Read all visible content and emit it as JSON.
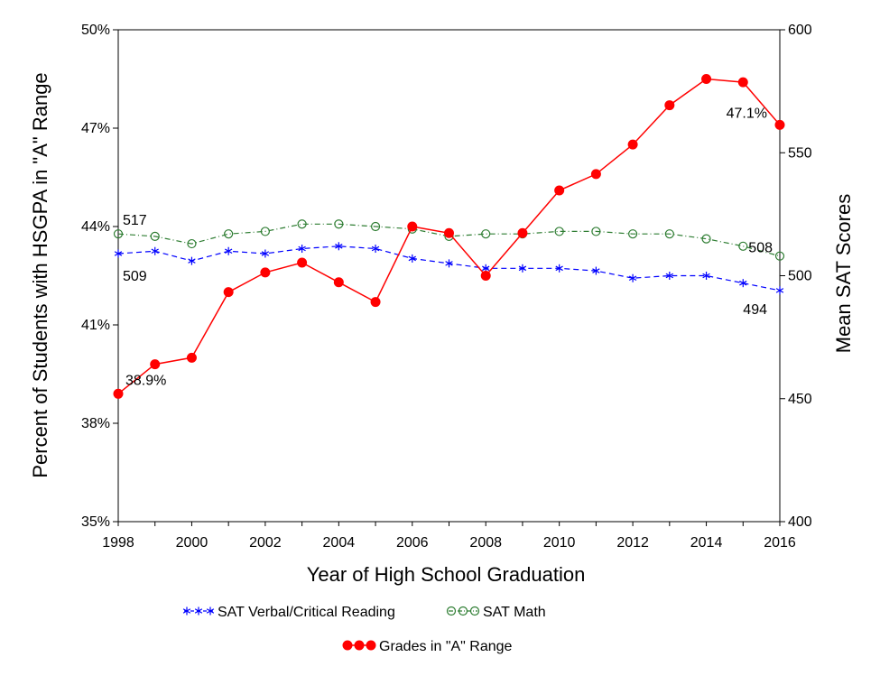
{
  "chart_data": {
    "type": "line",
    "title": "",
    "xlabel": "Year of High School Graduation",
    "ylabel_left": "Percent of Students with HSGPA in \"A\" Range",
    "ylabel_right": "Mean SAT Scores",
    "x": [
      1998,
      1999,
      2000,
      2001,
      2002,
      2003,
      2004,
      2005,
      2006,
      2007,
      2008,
      2009,
      2010,
      2011,
      2012,
      2013,
      2014,
      2015,
      2016
    ],
    "x_ticks": [
      "1998",
      "2000",
      "2002",
      "2004",
      "2006",
      "2008",
      "2010",
      "2012",
      "2014",
      "2016"
    ],
    "y_left_ticks": [
      "35%",
      "38%",
      "41%",
      "44%",
      "47%",
      "50%"
    ],
    "y_right_ticks": [
      "400",
      "450",
      "500",
      "550",
      "600"
    ],
    "ylim_left": [
      35,
      50
    ],
    "ylim_right": [
      400,
      600
    ],
    "series": [
      {
        "name": "SAT Verbal/Critical Reading",
        "axis": "right",
        "color": "#0000ff",
        "marker": "star",
        "line": "dashed",
        "values": [
          509,
          510,
          506,
          510,
          509,
          511,
          512,
          511,
          507,
          505,
          503,
          503,
          503,
          502,
          499,
          500,
          500,
          497,
          494
        ]
      },
      {
        "name": "SAT Math",
        "axis": "right",
        "color": "#2e7d32",
        "marker": "open-circle",
        "line": "dash-dot",
        "values": [
          517,
          516,
          513,
          517,
          518,
          521,
          521,
          520,
          519,
          516,
          517,
          517,
          518,
          518,
          517,
          517,
          515,
          512,
          508
        ]
      },
      {
        "name": "Grades in \"A\" Range",
        "axis": "left",
        "color": "#ff0000",
        "marker": "filled-circle",
        "line": "solid",
        "values": [
          38.9,
          39.8,
          40.0,
          42.0,
          42.6,
          42.9,
          42.3,
          41.7,
          44.0,
          43.8,
          42.5,
          43.8,
          45.1,
          45.6,
          46.5,
          47.7,
          48.5,
          48.4,
          47.1
        ]
      }
    ],
    "annotations": [
      {
        "text": "517",
        "series": 1,
        "index": 0
      },
      {
        "text": "509",
        "series": 0,
        "index": 0
      },
      {
        "text": "38.9%",
        "series": 2,
        "index": 0
      },
      {
        "text": "47.1%",
        "series": 2,
        "index": 18
      },
      {
        "text": "508",
        "series": 1,
        "index": 18
      },
      {
        "text": "494",
        "series": 0,
        "index": 18
      }
    ],
    "legend": [
      "SAT Verbal/Critical Reading",
      "SAT Math",
      "Grades in \"A\" Range"
    ],
    "legend_position": "bottom",
    "grid": false
  }
}
